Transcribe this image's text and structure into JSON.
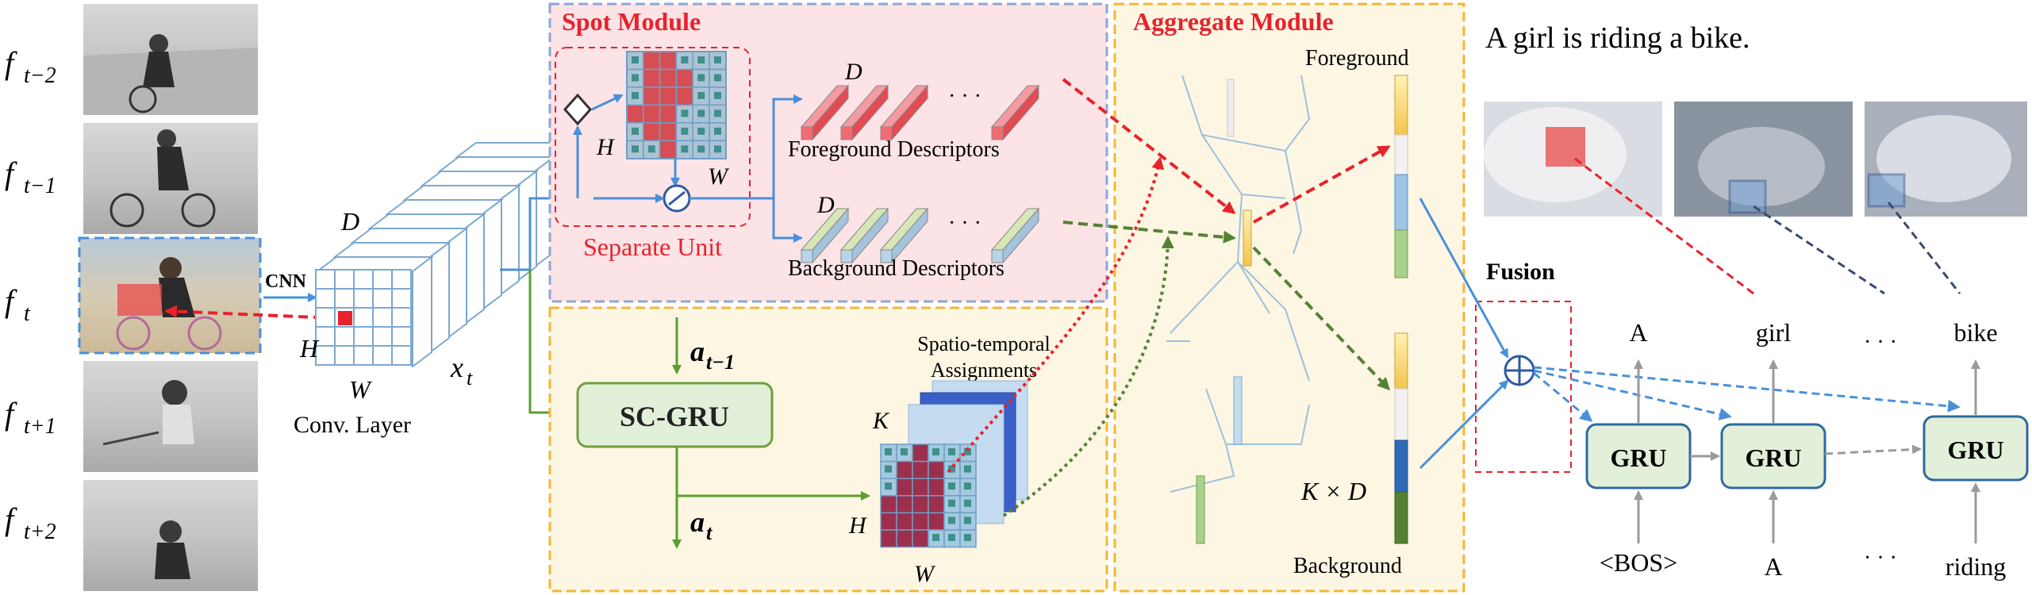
{
  "frames": [
    {
      "label": "f",
      "sub": "t−2"
    },
    {
      "label": "f",
      "sub": "t−1"
    },
    {
      "label": "f",
      "sub": "t"
    },
    {
      "label": "f",
      "sub": "t+1"
    },
    {
      "label": "f",
      "sub": "t+2"
    }
  ],
  "cnn": {
    "arrow_label": "CNN",
    "D": "D",
    "H": "H",
    "W": "W",
    "x_main": "x",
    "x_sub": "t",
    "caption": "Conv.  Layer"
  },
  "spot_module": {
    "title": "Spot Module",
    "separate_unit": "Separate Unit",
    "H": "H",
    "W": "W",
    "D1": "D",
    "D2": "D",
    "ellipsis1": "· · ·",
    "ellipsis2": "· · ·",
    "foreground_descriptors": "Foreground Descriptors",
    "background_descriptors": "Background Descriptors"
  },
  "scgru": {
    "in_main": "a",
    "in_sub": "t−1",
    "out_main": "a",
    "out_sub": "t",
    "label": "SC-GRU",
    "assign_title_1": "Spatio-temporal",
    "assign_title_2": "Assignments",
    "K": "K",
    "H": "H",
    "W": "W"
  },
  "aggregate_module": {
    "title": "Aggregate Module",
    "foreground": "Foreground",
    "background": "Background",
    "kxd": "K × D"
  },
  "caption_sentence": "A girl is riding a bike.",
  "fusion": {
    "label": "Fusion",
    "symbol": "⊕"
  },
  "decoder": {
    "gru_label": "GRU",
    "outputs": [
      "A",
      "girl",
      "· · ·",
      "bike"
    ],
    "inputs": [
      "<BOS>",
      "A",
      "· · ·",
      "riding"
    ]
  },
  "colors": {
    "spot_bg": "#fbe3e6",
    "spot_border": "#8fa6d6",
    "aggregate_bg": "#fdf6e3",
    "aggregate_border": "#f5b731",
    "lower_border": "#f5b731",
    "red_title": "#e8222c",
    "gru_fill": "#e2efd9",
    "gru_border": "#2f6a9f",
    "scgru_fill": "#e2efd9",
    "scgru_border": "#70a041",
    "blue_arrow": "#4a90d9",
    "green_arrow": "#5a9e2f",
    "red_dashed": "#e8222c",
    "green_dashed": "#548235",
    "navy_dashed": "#3c4a6b"
  }
}
